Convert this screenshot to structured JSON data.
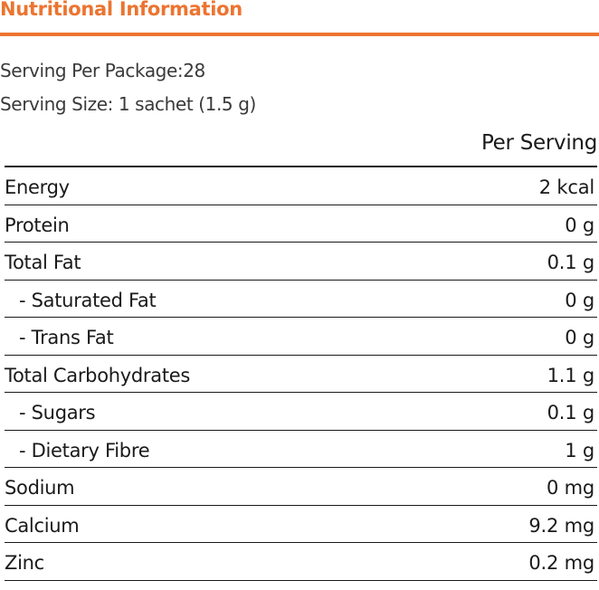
{
  "header": {
    "title": "Nutritional Information",
    "accent_color": "#ec7430"
  },
  "meta": {
    "servings_per_package": "Serving Per Package:28",
    "serving_size": "Serving Size: 1 sachet (1.5 g)"
  },
  "table": {
    "column_header": "Per Serving",
    "rows": [
      {
        "name": "Energy",
        "value": "2 kcal"
      },
      {
        "name": "Protein",
        "value": "0 g"
      },
      {
        "name": "Total Fat",
        "value": "0.1 g"
      },
      {
        "name": "- Saturated Fat",
        "value": "0 g"
      },
      {
        "name": "- Trans Fat",
        "value": "0 g"
      },
      {
        "name": "Total Carbohydrates",
        "value": "1.1 g"
      },
      {
        "name": "- Sugars",
        "value": "0.1 g"
      },
      {
        "name": "- Dietary Fibre",
        "value": "1 g"
      },
      {
        "name": "Sodium",
        "value": "0 mg"
      },
      {
        "name": "Calcium",
        "value": "9.2 mg"
      },
      {
        "name": "Zinc",
        "value": "0.2 mg"
      }
    ]
  }
}
